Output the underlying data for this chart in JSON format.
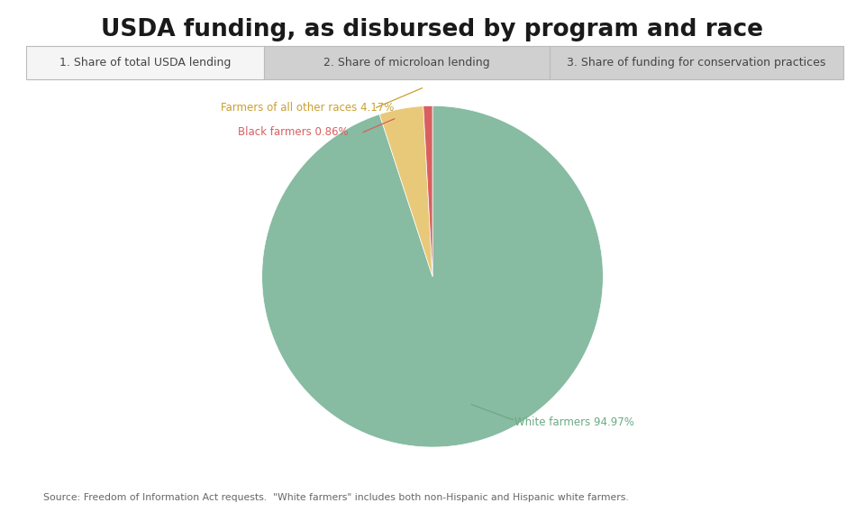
{
  "title": "USDA funding, as disbursed by program and race",
  "tab_labels": [
    "1. Share of total USDA lending",
    "2. Share of microloan lending",
    "3. Share of funding for conservation practices"
  ],
  "slices": [
    {
      "label": "White farmers",
      "value": 94.97,
      "color": "#87bba2"
    },
    {
      "label": "Farmers of all other races",
      "value": 4.17,
      "color": "#e8c97a"
    },
    {
      "label": "Black farmers",
      "value": 0.86,
      "color": "#d95f5f"
    }
  ],
  "source_text": "Source: Freedom of Information Act requests.  \"White farmers\" includes both non-Hispanic and Hispanic white farmers.",
  "bg_color": "#ffffff",
  "tab_active_bg": "#f5f5f5",
  "tab_inactive_bg": "#d0d0d0",
  "tab_border_color": "#bbbbbb"
}
